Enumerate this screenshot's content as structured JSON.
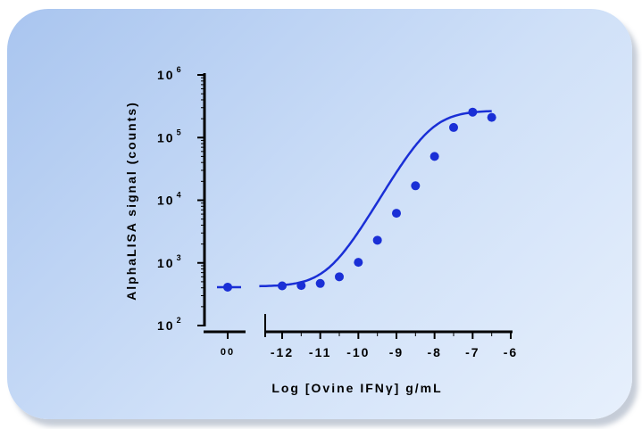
{
  "chart_data": {
    "type": "scatter",
    "xlabel": "Log [Ovine IFNγ] g/mL",
    "ylabel": "AlphaLISA signal (counts)",
    "yscale": "log",
    "ylim": [
      100,
      1000000
    ],
    "xlim": [
      -12.6,
      -6.2
    ],
    "x_ticks": [
      -12,
      -11,
      -10,
      -9,
      -8,
      -7,
      -6
    ],
    "x_tick_labels": [
      "-12",
      "-11",
      "-10",
      "-9",
      "-8",
      "-7",
      "-6"
    ],
    "zero_tick_label": "00",
    "y_ticks": [
      {
        "base": "10",
        "exp": "2"
      },
      {
        "base": "10",
        "exp": "3"
      },
      {
        "base": "10",
        "exp": "4"
      },
      {
        "base": "10",
        "exp": "5"
      },
      {
        "base": "10",
        "exp": "6"
      }
    ],
    "zero_point": {
      "x": "0",
      "y": 410
    },
    "points": [
      {
        "x": -12.0,
        "y": 430
      },
      {
        "x": -11.5,
        "y": 435
      },
      {
        "x": -11.0,
        "y": 470
      },
      {
        "x": -10.5,
        "y": 600
      },
      {
        "x": -10.0,
        "y": 1020
      },
      {
        "x": -9.5,
        "y": 2300
      },
      {
        "x": -9.0,
        "y": 6200
      },
      {
        "x": -8.5,
        "y": 17000
      },
      {
        "x": -8.0,
        "y": 50000
      },
      {
        "x": -7.5,
        "y": 145000
      },
      {
        "x": -7.0,
        "y": 255000
      },
      {
        "x": -6.5,
        "y": 210000
      }
    ],
    "fit": {
      "bottom": 420,
      "top": 270000,
      "logEC50": -8.1,
      "hill": 1.05,
      "x_start": -12.6,
      "x_end": -6.5
    },
    "color": "#1a2fd6"
  }
}
